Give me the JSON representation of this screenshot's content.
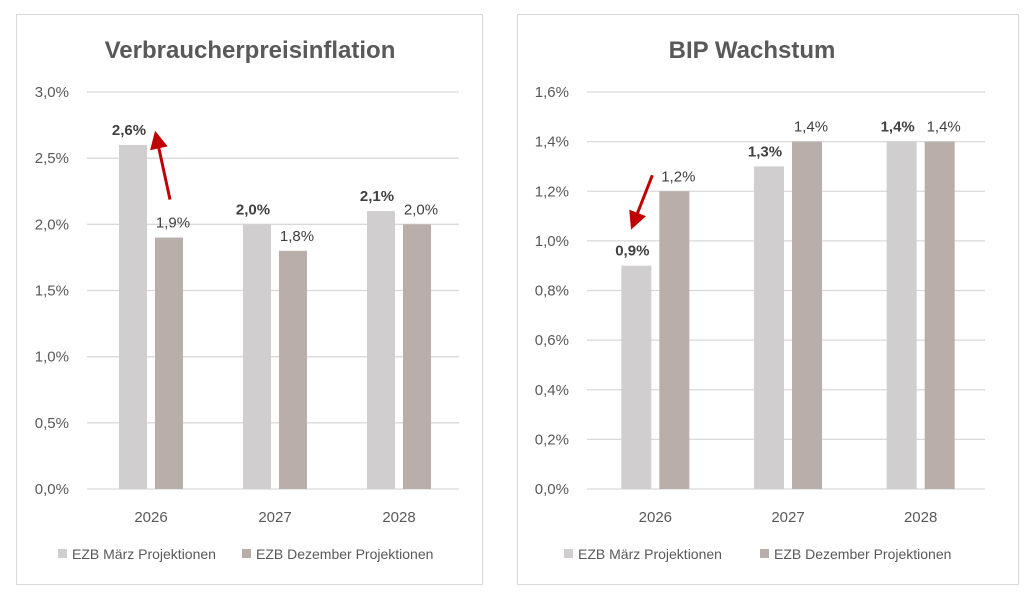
{
  "colors": {
    "march": "#d0cecf",
    "december": "#b9aea9",
    "arrow": "#c00000",
    "grid": "#d9d9d9",
    "text": "#595959",
    "label": "#404040"
  },
  "chart_data": [
    {
      "type": "bar",
      "title": "Verbraucherpreisinflation",
      "categories": [
        "2026",
        "2027",
        "2028"
      ],
      "ylim": [
        0,
        3.0
      ],
      "yticks": [
        "0,0%",
        "0,5%",
        "1,0%",
        "1,5%",
        "2,0%",
        "2,5%",
        "3,0%"
      ],
      "grid": true,
      "legend_position": "bottom",
      "series": [
        {
          "name": "EZB März Projektionen",
          "values": [
            2.6,
            2.0,
            2.1
          ],
          "labels": [
            "2,6%",
            "2,0%",
            "2,1%"
          ],
          "bold_labels": true
        },
        {
          "name": "EZB Dezember Projektionen",
          "values": [
            1.9,
            1.8,
            2.0
          ],
          "labels": [
            "1,9%",
            "1,8%",
            "2,0%"
          ],
          "bold_labels": false
        }
      ],
      "annotation": {
        "type": "arrow",
        "direction": "up",
        "from_value": 1.9,
        "to_value": 2.6,
        "category": "2026"
      }
    },
    {
      "type": "bar",
      "title": "BIP Wachstum",
      "categories": [
        "2026",
        "2027",
        "2028"
      ],
      "ylim": [
        0,
        1.6
      ],
      "yticks": [
        "0,0%",
        "0,2%",
        "0,4%",
        "0,6%",
        "0,8%",
        "1,0%",
        "1,2%",
        "1,4%",
        "1,6%"
      ],
      "grid": true,
      "legend_position": "bottom",
      "series": [
        {
          "name": "EZB März Projektionen",
          "values": [
            0.9,
            1.3,
            1.4
          ],
          "labels": [
            "0,9%",
            "1,3%",
            "1,4%"
          ],
          "bold_labels": true
        },
        {
          "name": "EZB Dezember Projektionen",
          "values": [
            1.2,
            1.4,
            1.4
          ],
          "labels": [
            "1,2%",
            "1,4%",
            "1,4%"
          ],
          "bold_labels": false
        }
      ],
      "annotation": {
        "type": "arrow",
        "direction": "down",
        "from_value": 1.2,
        "to_value": 0.9,
        "category": "2026"
      }
    }
  ]
}
